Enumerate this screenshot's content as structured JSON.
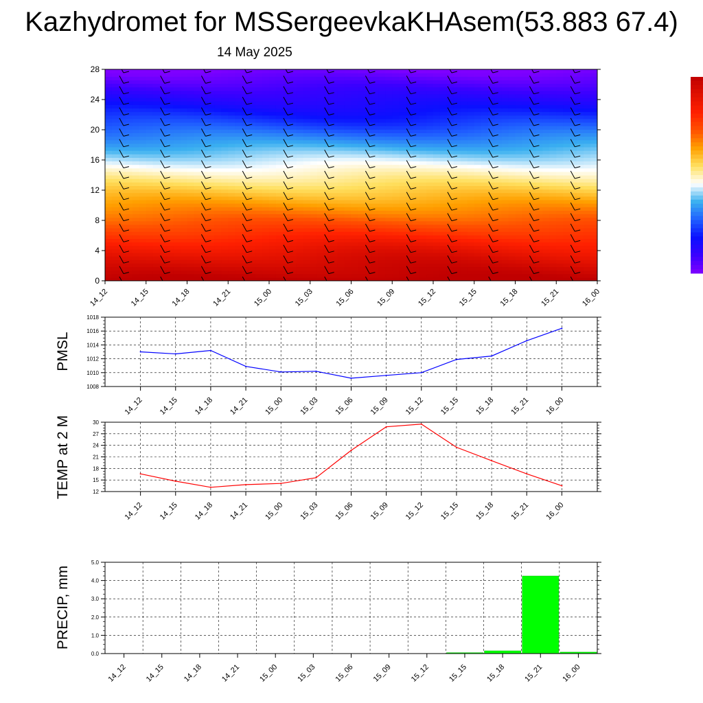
{
  "header": {
    "title": "Kazhydromet for MSSergeevkaKHAsem(53.883 67.4)",
    "subtitle": "14 May 2025"
  },
  "chart_data": [
    {
      "type": "heatmap",
      "name": "vertical cross-section",
      "x": [
        "14_12",
        "14_15",
        "14_18",
        "14_21",
        "15_00",
        "15_03",
        "15_06",
        "15_09",
        "15_12",
        "15_15",
        "15_18",
        "15_21",
        "16_00"
      ],
      "yticks": [
        0,
        4,
        8,
        12,
        16,
        20,
        24,
        28
      ],
      "ylim": [
        0,
        28
      ],
      "colormap": [
        "#7f00ff",
        "#3a00ff",
        "#0a10ff",
        "#2060ff",
        "#3ab0f0",
        "#ffffff",
        "#ffe060",
        "#ffa000",
        "#ff5000",
        "#ff2000",
        "#e01000",
        "#c00000"
      ],
      "wind_barbs": true,
      "colorbar": true
    },
    {
      "type": "line",
      "ylabel": "PMSL",
      "x": [
        "14_12",
        "14_15",
        "14_18",
        "14_21",
        "15_00",
        "15_03",
        "15_06",
        "15_09",
        "15_12",
        "15_15",
        "15_18",
        "15_21",
        "16_00"
      ],
      "values": [
        1013.0,
        1012.7,
        1013.2,
        1010.9,
        1010.1,
        1010.2,
        1009.2,
        1009.6,
        1010.0,
        1011.9,
        1012.4,
        1014.6,
        1016.4
      ],
      "ylim": [
        1008,
        1018
      ],
      "yticks": [
        "1008",
        "1010",
        "1012",
        "1014",
        "1016",
        "1018"
      ],
      "color": "#0000ff",
      "grid": true
    },
    {
      "type": "line",
      "ylabel": "TEMP at 2 M",
      "x": [
        "14_12",
        "14_15",
        "14_18",
        "14_21",
        "15_00",
        "15_03",
        "15_06",
        "15_09",
        "15_12",
        "15_15",
        "15_18",
        "15_21",
        "16_00"
      ],
      "values": [
        16.6,
        14.7,
        13.1,
        13.8,
        14.1,
        15.6,
        22.7,
        28.8,
        29.5,
        23.5,
        20.0,
        16.6,
        13.5
      ],
      "ylim": [
        12,
        30
      ],
      "yticks": [
        "12",
        "15",
        "18",
        "21",
        "24",
        "27",
        "30"
      ],
      "color": "#ff0000",
      "grid": true
    },
    {
      "type": "bar",
      "ylabel": "PRECIP, mm",
      "categories": [
        "14_12",
        "14_15",
        "14_18",
        "14_21",
        "15_00",
        "15_03",
        "15_06",
        "15_09",
        "15_12",
        "15_15",
        "15_18",
        "15_21",
        "16_00"
      ],
      "values": [
        0,
        0,
        0,
        0,
        0,
        0,
        0,
        0,
        0,
        0.05,
        0.15,
        4.25,
        0.08
      ],
      "ylim": [
        0,
        5
      ],
      "yticks": [
        "0.0",
        "1.0",
        "2.0",
        "3.0",
        "4.0",
        "5.0"
      ],
      "color": "#00ff00",
      "grid": true
    }
  ]
}
